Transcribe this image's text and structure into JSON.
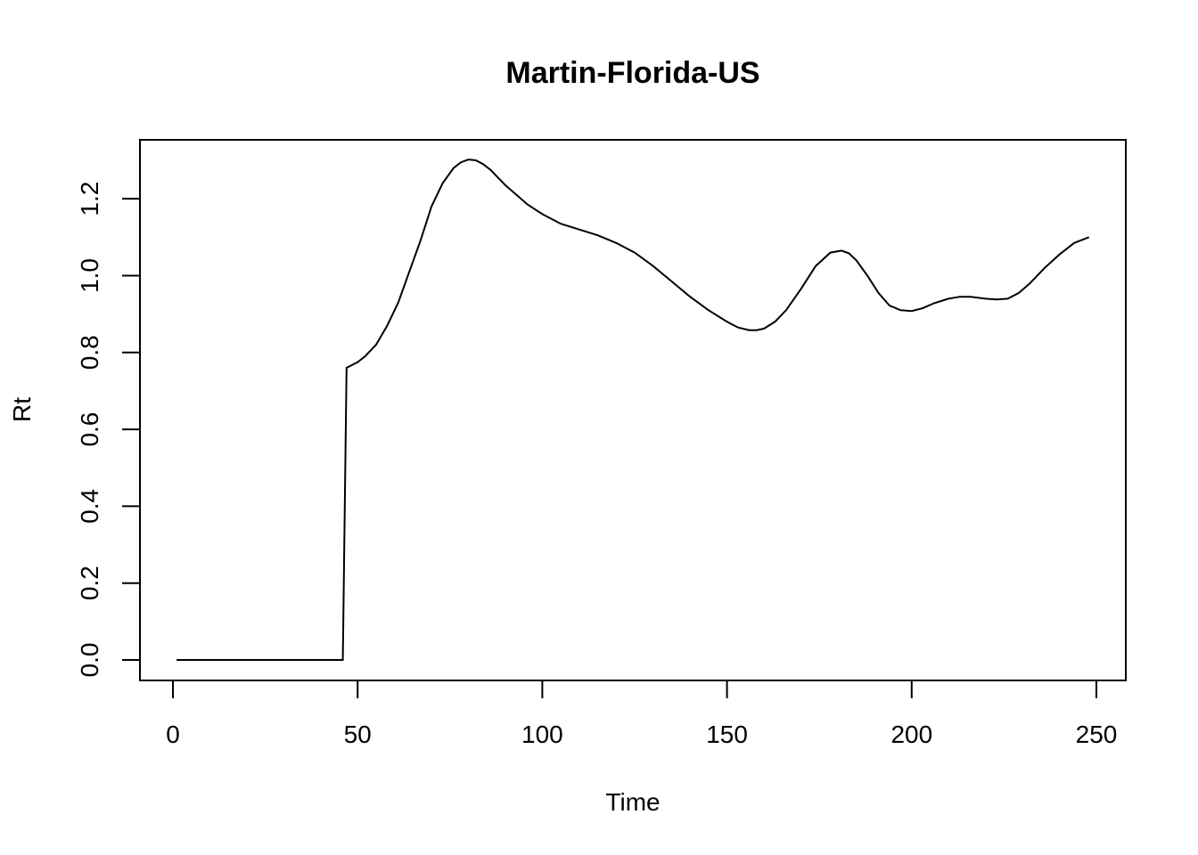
{
  "chart_data": {
    "type": "line",
    "title": "Martin-Florida-US",
    "xlabel": "Time",
    "ylabel": "Rt",
    "xlim": [
      0,
      250
    ],
    "ylim": [
      0.0,
      1.3
    ],
    "x_ticks": [
      0,
      50,
      100,
      150,
      200,
      250
    ],
    "x_tick_labels": [
      "0",
      "50",
      "100",
      "150",
      "200",
      "250"
    ],
    "y_ticks": [
      0.0,
      0.2,
      0.4,
      0.6,
      0.8,
      1.0,
      1.2
    ],
    "y_tick_labels": [
      "0.0",
      "0.2",
      "0.4",
      "0.6",
      "0.8",
      "1.0",
      "1.2"
    ],
    "grid": false,
    "line_color": "#000000",
    "series": [
      {
        "x": [
          1,
          10,
          20,
          30,
          40,
          46,
          47,
          48,
          50,
          52,
          55,
          58,
          61,
          64,
          67,
          70,
          73,
          76,
          78,
          80,
          82,
          84,
          86,
          88,
          90,
          93,
          96,
          100,
          105,
          110,
          115,
          120,
          125,
          130,
          135,
          140,
          145,
          150,
          153,
          156,
          158,
          160,
          163,
          166,
          170,
          174,
          178,
          181,
          183,
          185,
          188,
          191,
          194,
          197,
          200,
          203,
          206,
          210,
          213,
          216,
          220,
          223,
          226,
          229,
          232,
          236,
          240,
          244,
          248
        ],
        "y": [
          0,
          0,
          0,
          0,
          0,
          0,
          0.76,
          0.765,
          0.775,
          0.79,
          0.82,
          0.87,
          0.93,
          1.01,
          1.09,
          1.18,
          1.24,
          1.28,
          1.295,
          1.302,
          1.3,
          1.29,
          1.275,
          1.255,
          1.235,
          1.21,
          1.185,
          1.16,
          1.135,
          1.12,
          1.105,
          1.085,
          1.06,
          1.025,
          0.985,
          0.945,
          0.91,
          0.88,
          0.865,
          0.858,
          0.858,
          0.862,
          0.88,
          0.91,
          0.965,
          1.025,
          1.06,
          1.065,
          1.058,
          1.04,
          1.0,
          0.955,
          0.922,
          0.91,
          0.908,
          0.915,
          0.928,
          0.94,
          0.945,
          0.945,
          0.94,
          0.938,
          0.94,
          0.955,
          0.98,
          1.02,
          1.055,
          1.085,
          1.1
        ]
      }
    ]
  }
}
